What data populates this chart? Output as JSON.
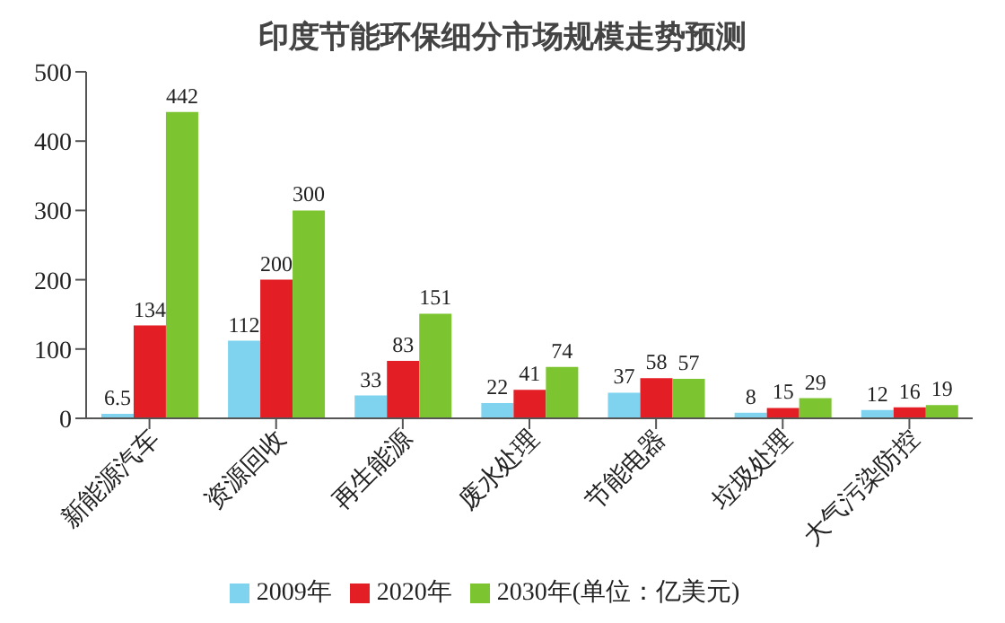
{
  "chart_data": {
    "type": "bar",
    "title": "印度节能环保细分市场规模走势预测",
    "categories": [
      "新能源汽车",
      "资源回收",
      "再生能源",
      "废水处理",
      "节能电器",
      "垃圾处理",
      "大气污染防控"
    ],
    "series": [
      {
        "name": "2009年",
        "color": "#7fd3ee",
        "values": [
          6.5,
          112,
          33,
          22,
          37,
          8,
          12
        ]
      },
      {
        "name": "2020年",
        "color": "#e31e25",
        "values": [
          134,
          200,
          83,
          41,
          58,
          15,
          16
        ]
      },
      {
        "name": "2030年(单位：亿美元)",
        "color": "#7cc531",
        "values": [
          442,
          300,
          151,
          74,
          57,
          29,
          19
        ]
      }
    ],
    "ylim": [
      0,
      500
    ],
    "yticks": [
      0,
      100,
      200,
      300,
      400,
      500
    ],
    "data_labels": true,
    "grid": false,
    "legend": "bottom"
  }
}
